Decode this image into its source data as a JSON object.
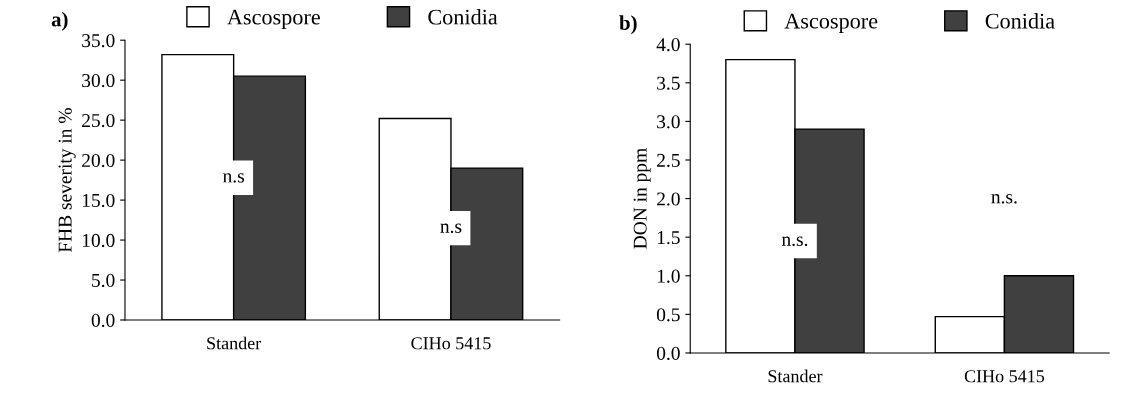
{
  "chart_data": [
    {
      "type": "bar",
      "title": "a)",
      "ylabel": "FHB severity in %",
      "categories": [
        "Stander",
        "CIHo 5415"
      ],
      "series": [
        {
          "name": "Ascospore",
          "color": "#ffffff",
          "values": [
            33.2,
            25.2
          ]
        },
        {
          "name": "Conidia",
          "color": "#404040",
          "values": [
            30.5,
            19.0
          ]
        }
      ],
      "ylim": [
        0,
        35
      ],
      "yticks": [
        {
          "value": 0,
          "label": "0.0"
        },
        {
          "value": 5,
          "label": "5.0"
        },
        {
          "value": 10,
          "label": "10.0"
        },
        {
          "value": 15,
          "label": "15.0"
        },
        {
          "value": 20,
          "label": "20.0"
        },
        {
          "value": 25,
          "label": "25.0"
        },
        {
          "value": 30,
          "label": "30.0"
        },
        {
          "value": 35,
          "label": "35.0"
        }
      ],
      "annotations": [
        {
          "text": "n.s",
          "x": "Stander",
          "y": 17.8
        },
        {
          "text": "n.s",
          "x": "CIHo 5415",
          "y": 11.5
        }
      ],
      "legend": "top",
      "grid": false
    },
    {
      "type": "bar",
      "title": "b)",
      "ylabel": "DON in ppm",
      "categories": [
        "Stander",
        "CIHo 5415"
      ],
      "series": [
        {
          "name": "Ascospore",
          "color": "#ffffff",
          "values": [
            3.8,
            0.47
          ]
        },
        {
          "name": "Conidia",
          "color": "#404040",
          "values": [
            2.9,
            1.0
          ]
        }
      ],
      "ylim": [
        0,
        4
      ],
      "yticks": [
        {
          "value": 0,
          "label": "0.0"
        },
        {
          "value": 0.5,
          "label": "0.5"
        },
        {
          "value": 1,
          "label": "1.0"
        },
        {
          "value": 1.5,
          "label": "1.5"
        },
        {
          "value": 2,
          "label": "2.0"
        },
        {
          "value": 2.5,
          "label": "2.5"
        },
        {
          "value": 3,
          "label": "3.0"
        },
        {
          "value": 3.5,
          "label": "3.5"
        },
        {
          "value": 4,
          "label": "4.0"
        }
      ],
      "annotations": [
        {
          "text": "n.s.",
          "x": "Stander",
          "y": 1.45
        },
        {
          "text": "n.s.",
          "x": "CIHo 5415",
          "y": 2.0
        }
      ],
      "legend": "top",
      "grid": false
    }
  ]
}
